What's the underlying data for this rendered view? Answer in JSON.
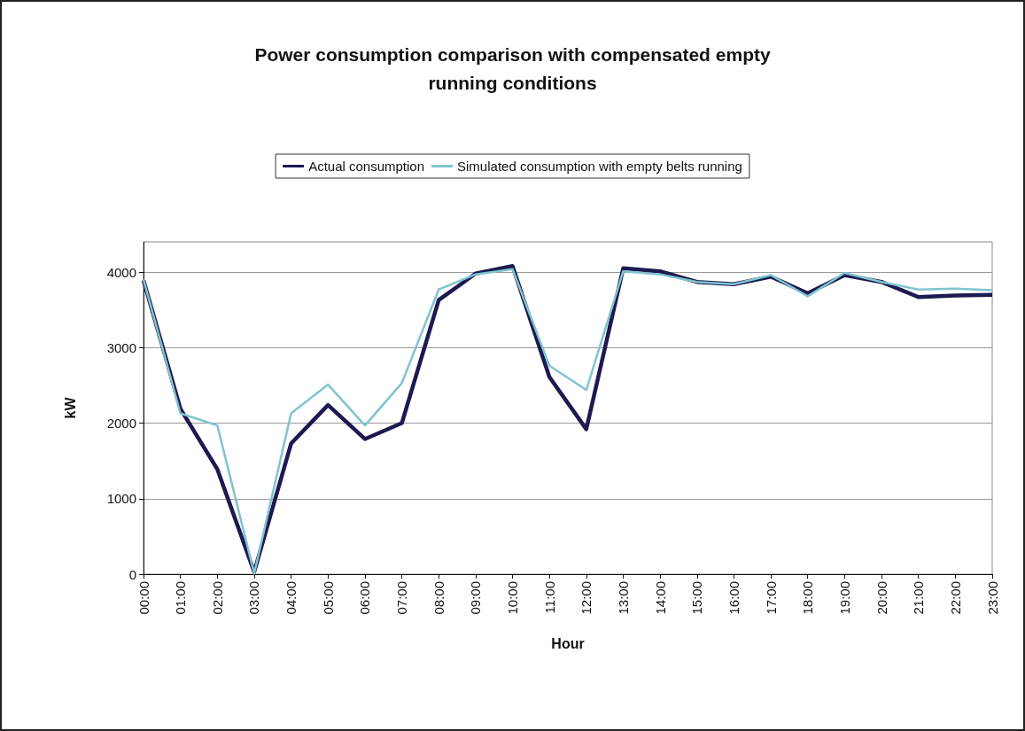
{
  "chart_data": {
    "type": "line",
    "title": "Power consumption comparison with compensated empty\nrunning conditions",
    "xlabel": "Hour",
    "ylabel": "kW",
    "categories": [
      "00:00",
      "01:00",
      "02:00",
      "03:00",
      "04:00",
      "05:00",
      "06:00",
      "07:00",
      "08:00",
      "09:00",
      "10:00",
      "11:00",
      "12:00",
      "13:00",
      "14:00",
      "15:00",
      "16:00",
      "17:00",
      "18:00",
      "19:00",
      "20:00",
      "21:00",
      "22:00",
      "23:00"
    ],
    "series": [
      {
        "name": "Actual consumption",
        "color": "#1c1a50",
        "values": [
          3890,
          2190,
          1390,
          30,
          1730,
          2240,
          1790,
          2000,
          3630,
          3980,
          4080,
          2610,
          1920,
          4050,
          4010,
          3870,
          3840,
          3940,
          3720,
          3960,
          3870,
          3670,
          3690,
          3700
        ]
      },
      {
        "name": "Simulated consumption with empty belts running",
        "color": "#7fc4d0",
        "values": [
          3900,
          2130,
          1970,
          10,
          2130,
          2510,
          1970,
          2530,
          3770,
          3970,
          4040,
          2760,
          2440,
          4010,
          3970,
          3870,
          3840,
          3960,
          3680,
          3990,
          3870,
          3770,
          3780,
          3760
        ]
      }
    ],
    "ylim": [
      0,
      4400
    ],
    "yticks": [
      0,
      1000,
      2000,
      3000,
      4000
    ],
    "grid": "y",
    "legend": "top",
    "marker": "none",
    "line_style": "solid"
  }
}
